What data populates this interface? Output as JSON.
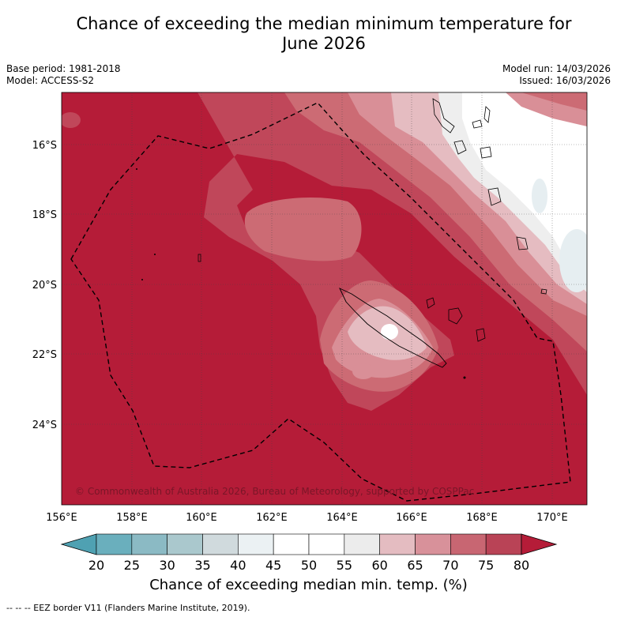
{
  "title_line1": "Chance of exceeding the median minimum temperature for",
  "title_line2": "June 2026",
  "base_period": "Base period: 1981-2018",
  "model": "Model: ACCESS-S2",
  "model_run": "Model run: 14/03/2026",
  "issued": "Issued: 16/03/2026",
  "copyright": "© Commonwealth of Australia 2026, Bureau of Meteorology, supported by COSPPac",
  "lon_ticks": [
    "156°E",
    "158°E",
    "160°E",
    "162°E",
    "164°E",
    "166°E",
    "168°E",
    "170°E"
  ],
  "lat_ticks": [
    "16°S",
    "18°S",
    "20°S",
    "22°S",
    "24°S"
  ],
  "colorbar": {
    "labels": [
      "20",
      "25",
      "30",
      "35",
      "40",
      "45",
      "50",
      "55",
      "60",
      "65",
      "70",
      "75",
      "80"
    ],
    "colors": [
      "#4fa1b2",
      "#6aafbd",
      "#8bbac4",
      "#aac8cd",
      "#d0dadd",
      "#ebf1f3",
      "#ffffff",
      "#ffffff",
      "#ececec",
      "#e4bcc1",
      "#d8919a",
      "#c86672",
      "#b94356",
      "#b51c38"
    ],
    "title": "Chance of exceeding median min. temp. (%)"
  },
  "legend_note": "--  --  -- EEZ border V11 (Flanders Marine Institute, 2019).",
  "colors": {
    "c80": "#b51c38",
    "c75": "#c0475a",
    "c70": "#cc6b74",
    "c65": "#d98f97",
    "c60": "#e5bcc1",
    "c55": "#eeeeee",
    "c50": "#ffffff",
    "c40": "#e6eef1"
  }
}
